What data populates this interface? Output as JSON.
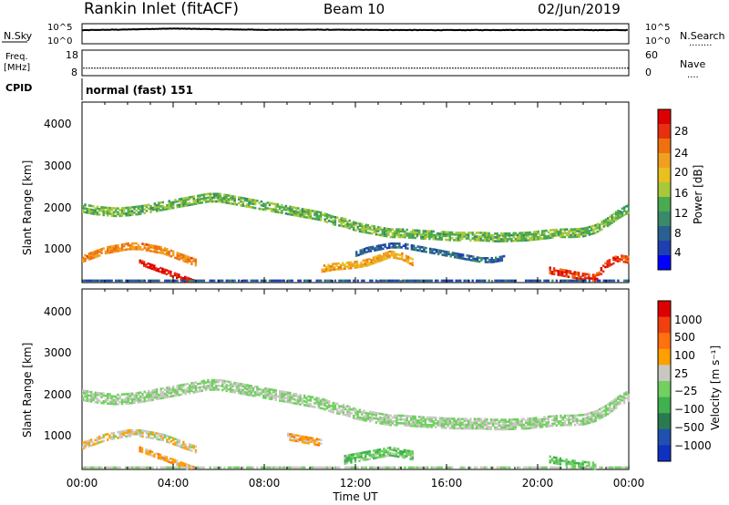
{
  "header": {
    "title": "Rankin Inlet (fitACF)",
    "beam": "Beam 10",
    "date": "02/Jun/2019"
  },
  "noise_panel": {
    "left_label": "N.Sky",
    "left_ticks": [
      "10^5",
      "10^0"
    ],
    "right_ticks": [
      "10^5",
      "10^0"
    ],
    "right_label": "N.Search",
    "right_legend": "........"
  },
  "freq_panel": {
    "left_label_1": "Freq.",
    "left_label_2": "[MHz]",
    "left_ticks": [
      "18",
      "8"
    ],
    "right_ticks": [
      "60",
      "0"
    ],
    "right_label": "Nave",
    "right_legend": "...."
  },
  "cpid": {
    "label": "CPID",
    "text": "normal (fast) 151"
  },
  "power_panel": {
    "ylabel": "Slant Range [km]",
    "yticks": [
      "4000",
      "3000",
      "2000",
      "1000"
    ],
    "colorbar_label": "Power [dB]",
    "colorbar_ticks": [
      "28",
      "24",
      "20",
      "16",
      "12",
      "8",
      "4"
    ]
  },
  "velocity_panel": {
    "ylabel": "Slant Range [km]",
    "yticks": [
      "4000",
      "3000",
      "2000",
      "1000"
    ],
    "colorbar_label": "Velocity [m s⁻¹]",
    "colorbar_ticks": [
      "1000",
      "500",
      "100",
      "25",
      "−25",
      "−100",
      "−500",
      "−1000"
    ]
  },
  "xaxis": {
    "label": "Time UT",
    "ticks": [
      "00:00",
      "04:00",
      "08:00",
      "12:00",
      "16:00",
      "20:00",
      "00:00"
    ]
  },
  "colors": {
    "power": [
      "#0000ff",
      "#1f3fb0",
      "#2a6090",
      "#3a8a6a",
      "#4aaa50",
      "#a8c83a",
      "#e8c020",
      "#f0a020",
      "#f07010",
      "#e83010",
      "#dd0000"
    ],
    "velocity": [
      "#1030c0",
      "#2050b0",
      "#2a7a50",
      "#40b050",
      "#70d060",
      "#c8c8c0",
      "#ffa000",
      "#ff7010",
      "#f04010",
      "#dd0000"
    ],
    "velocity_main": "#c8c8c0"
  },
  "chart_data": [
    {
      "type": "line",
      "title": "N.Sky",
      "x_range": [
        0,
        24
      ],
      "y_scale": "log",
      "ylim": [
        1,
        100000
      ],
      "series": [
        {
          "name": "N.Sky",
          "x": [
            0,
            2,
            4,
            6,
            8,
            10,
            12,
            14,
            16,
            18,
            20,
            22,
            24
          ],
          "y": [
            6000,
            10000,
            20000,
            12000,
            8000,
            9000,
            8000,
            7000,
            6500,
            7000,
            7500,
            7000,
            6500
          ]
        }
      ]
    },
    {
      "type": "scatter",
      "title": "Freq. [MHz]",
      "x_range": [
        0,
        24
      ],
      "ylim": [
        8,
        18
      ],
      "series": [
        {
          "name": "Freq.",
          "x": [
            0,
            4,
            8,
            12,
            16,
            20,
            24
          ],
          "y": [
            10.5,
            10.5,
            10.5,
            10.5,
            10.5,
            10.5,
            10.5
          ]
        }
      ]
    },
    {
      "type": "heatmap",
      "title": "Power [dB]",
      "xlabel": "Time UT",
      "ylabel": "Slant Range [km]",
      "x_range": [
        0,
        24
      ],
      "ylim": [
        180,
        4500
      ],
      "value_range": [
        0,
        30
      ],
      "bands": [
        {
          "x": [
            0,
            0.5,
            1.0,
            1.5,
            2.0,
            2.5,
            3.0,
            3.5,
            4.0,
            4.5,
            5.0,
            5.5,
            6.0,
            6.5,
            7.0,
            7.5,
            8.0,
            8.5,
            9.0,
            9.5,
            10.0,
            10.5,
            11.0,
            11.5,
            12.0,
            12.5,
            13.0,
            13.5,
            14.0,
            14.5,
            15.0,
            15.5,
            16.0,
            16.5,
            17.0,
            17.5,
            18.0,
            18.5,
            19.0,
            19.5,
            20.0,
            20.5,
            21.0,
            21.5,
            22.0,
            22.5,
            23.0,
            23.5,
            24.0
          ],
          "y": [
            2000,
            1950,
            1920,
            1900,
            1920,
            1950,
            2000,
            2050,
            2100,
            2150,
            2200,
            2250,
            2250,
            2200,
            2150,
            2100,
            2050,
            2000,
            1950,
            1900,
            1850,
            1800,
            1700,
            1650,
            1550,
            1500,
            1450,
            1400,
            1400,
            1380,
            1360,
            1350,
            1330,
            1320,
            1320,
            1320,
            1300,
            1300,
            1310,
            1320,
            1350,
            1380,
            1400,
            1400,
            1420,
            1500,
            1650,
            1850,
            2000
          ],
          "thickness": 200,
          "value": 13
        },
        {
          "x": [
            0,
            0.5,
            1.0,
            1.5,
            2.0,
            2.5,
            3.0,
            3.5,
            4.0,
            4.5,
            5.0
          ],
          "y": [
            800,
            900,
            1000,
            1050,
            1100,
            1100,
            1050,
            1000,
            900,
            800,
            700
          ],
          "thickness": 180,
          "value": 22
        },
        {
          "x": [
            2.5,
            3.0,
            3.5,
            4.0,
            4.5,
            5.0
          ],
          "y": [
            700,
            600,
            500,
            400,
            300,
            200
          ],
          "thickness": 110,
          "value": 28
        },
        {
          "x": [
            10.5,
            11.0,
            11.5,
            12.0,
            12.5,
            13.0,
            13.5,
            14.0,
            14.5
          ],
          "y": [
            550,
            600,
            620,
            650,
            700,
            800,
            900,
            850,
            700
          ],
          "thickness": 160,
          "value": 20
        },
        {
          "x": [
            12.0,
            12.5,
            13.0,
            13.5,
            14.0,
            14.5,
            15.0,
            15.5,
            16.0,
            16.5,
            17.0,
            17.5,
            18.0,
            18.5
          ],
          "y": [
            900,
            1000,
            1050,
            1100,
            1100,
            1050,
            1000,
            950,
            900,
            850,
            800,
            750,
            750,
            800
          ],
          "thickness": 100,
          "value": 7
        },
        {
          "x": [
            20.5,
            21.0,
            21.5,
            22.0,
            22.5,
            23.0,
            23.5,
            24.0
          ],
          "y": [
            500,
            450,
            400,
            350,
            320,
            650,
            800,
            750
          ],
          "thickness": 140,
          "value": 26
        },
        {
          "x": [
            0,
            24
          ],
          "y": [
            250,
            250
          ],
          "thickness": 80,
          "value": 6
        }
      ]
    },
    {
      "type": "heatmap",
      "title": "Velocity [m s⁻¹]",
      "xlabel": "Time UT",
      "ylabel": "Slant Range [km]",
      "x_range": [
        0,
        24
      ],
      "ylim": [
        180,
        4500
      ],
      "value_range": [
        -1000,
        1000
      ],
      "bands": [
        {
          "x": [
            0,
            0.5,
            1.0,
            1.5,
            2.0,
            2.5,
            3.0,
            3.5,
            4.0,
            4.5,
            5.0,
            5.5,
            6.0,
            6.5,
            7.0,
            7.5,
            8.0,
            8.5,
            9.0,
            9.5,
            10.0,
            10.5,
            11.0,
            11.5,
            12.0,
            12.5,
            13.0,
            13.5,
            14.0,
            14.5,
            15.0,
            15.5,
            16.0,
            16.5,
            17.0,
            17.5,
            18.0,
            18.5,
            19.0,
            19.5,
            20.0,
            20.5,
            21.0,
            21.5,
            22.0,
            22.5,
            23.0,
            23.5,
            24.0
          ],
          "y": [
            2000,
            1950,
            1920,
            1900,
            1920,
            1950,
            2000,
            2050,
            2100,
            2150,
            2200,
            2250,
            2250,
            2200,
            2150,
            2100,
            2050,
            2000,
            1950,
            1900,
            1850,
            1800,
            1700,
            1650,
            1550,
            1500,
            1450,
            1400,
            1400,
            1380,
            1360,
            1350,
            1330,
            1320,
            1320,
            1320,
            1300,
            1300,
            1310,
            1320,
            1350,
            1380,
            1400,
            1400,
            1420,
            1500,
            1650,
            1850,
            2000
          ],
          "thickness": 260,
          "value": 0
        },
        {
          "x": [
            0,
            0.5,
            1.0,
            1.5,
            2.0,
            2.5,
            3.0,
            3.5,
            4.0,
            4.5,
            5.0
          ],
          "y": [
            800,
            900,
            1000,
            1050,
            1100,
            1100,
            1050,
            1000,
            900,
            800,
            700
          ],
          "thickness": 180,
          "value": 150
        },
        {
          "x": [
            2.5,
            3.0,
            3.5,
            4.0,
            4.5,
            5.0
          ],
          "y": [
            700,
            600,
            500,
            400,
            300,
            200
          ],
          "thickness": 110,
          "value": 300
        },
        {
          "x": [
            11.5,
            12.0,
            12.5,
            13.0,
            13.5,
            14.0,
            14.5
          ],
          "y": [
            450,
            500,
            550,
            600,
            650,
            600,
            550
          ],
          "thickness": 200,
          "value": -150
        },
        {
          "x": [
            20.5,
            21.0,
            21.5,
            22.0,
            22.5
          ],
          "y": [
            450,
            400,
            350,
            320,
            300
          ],
          "thickness": 140,
          "value": -150
        },
        {
          "x": [
            9.0,
            9.5,
            10.0,
            10.5
          ],
          "y": [
            1000,
            950,
            900,
            850
          ],
          "thickness": 150,
          "value": 300
        },
        {
          "x": [
            0,
            24
          ],
          "y": [
            250,
            250
          ],
          "thickness": 80,
          "value": 20
        }
      ]
    }
  ]
}
